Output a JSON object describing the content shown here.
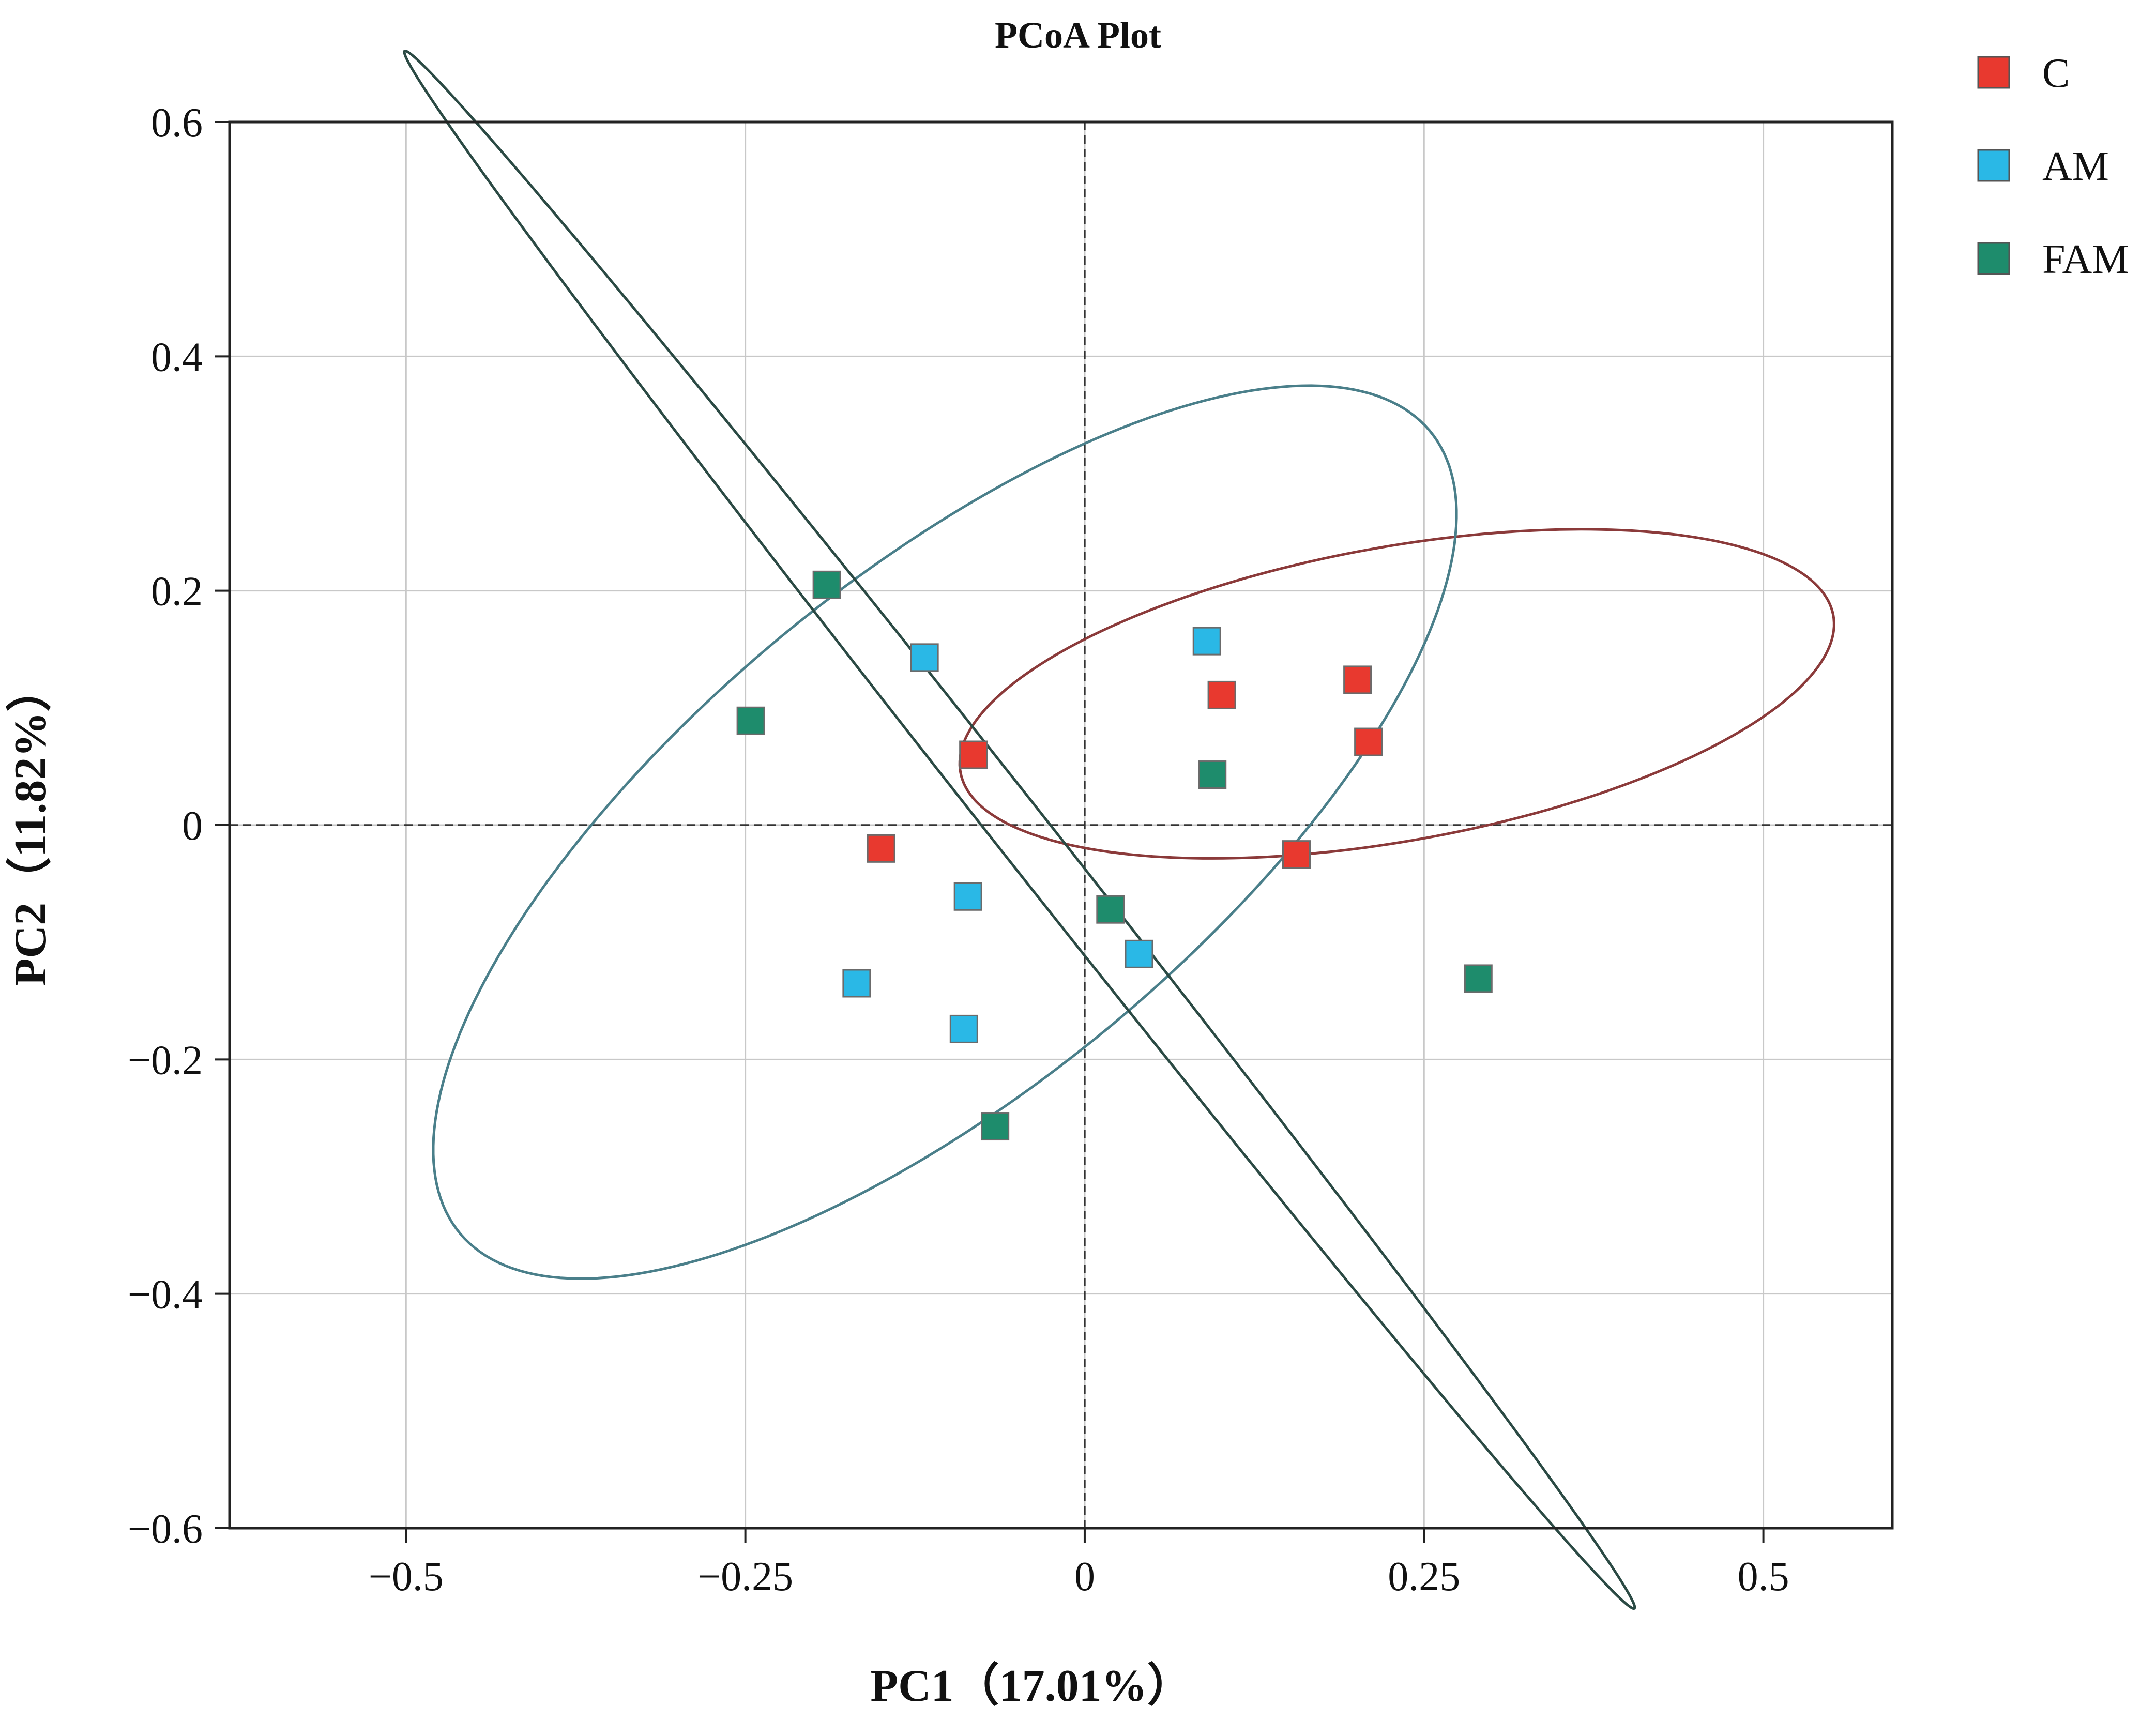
{
  "chart_data": {
    "type": "scatter",
    "title": "PCoA Plot",
    "xlabel": "PC1（17.01%）",
    "ylabel": "PC2（11.82%）",
    "xlim": [
      -0.63,
      0.595
    ],
    "ylim": [
      -0.6,
      0.6
    ],
    "grid": true,
    "zero_lines": true,
    "legend_position": "top-right",
    "xticks": [
      {
        "value": -0.5,
        "label": "−0.5"
      },
      {
        "value": -0.25,
        "label": "−0.25"
      },
      {
        "value": 0,
        "label": "0"
      },
      {
        "value": 0.25,
        "label": "0.25"
      },
      {
        "value": 0.5,
        "label": "0.5"
      }
    ],
    "yticks": [
      {
        "value": 0.6,
        "label": "0.6"
      },
      {
        "value": 0.4,
        "label": "0.4"
      },
      {
        "value": 0.2,
        "label": "0.2"
      },
      {
        "value": 0,
        "label": "0"
      },
      {
        "value": -0.2,
        "label": "−0.2"
      },
      {
        "value": -0.4,
        "label": "−0.4"
      },
      {
        "value": -0.6,
        "label": "−0.6"
      }
    ],
    "series": [
      {
        "name": "C",
        "color": "#e8392f",
        "ellipse_color": "#8b3a3a",
        "points": [
          {
            "x": -0.082,
            "y": 0.06
          },
          {
            "x": 0.101,
            "y": 0.111
          },
          {
            "x": 0.201,
            "y": 0.124
          },
          {
            "x": 0.209,
            "y": 0.071
          },
          {
            "x": -0.15,
            "y": -0.02
          },
          {
            "x": 0.156,
            "y": -0.025
          }
        ]
      },
      {
        "name": "AM",
        "color": "#2ab8e6",
        "ellipse_color": "#4a7f8a",
        "points": [
          {
            "x": -0.118,
            "y": 0.143
          },
          {
            "x": 0.09,
            "y": 0.157
          },
          {
            "x": -0.086,
            "y": -0.061
          },
          {
            "x": 0.04,
            "y": -0.11
          },
          {
            "x": -0.168,
            "y": -0.135
          },
          {
            "x": -0.089,
            "y": -0.174
          }
        ]
      },
      {
        "name": "FAM",
        "color": "#1e8c6c",
        "ellipse_color": "#2b4a44",
        "points": [
          {
            "x": -0.19,
            "y": 0.205
          },
          {
            "x": -0.246,
            "y": 0.089
          },
          {
            "x": 0.094,
            "y": 0.043
          },
          {
            "x": 0.019,
            "y": -0.072
          },
          {
            "x": 0.29,
            "y": -0.131
          },
          {
            "x": -0.066,
            "y": -0.257
          }
        ]
      }
    ],
    "ellipses": [
      {
        "series": "C",
        "cx": 0.23,
        "cy": 0.112,
        "x1": 0.542,
        "y1": 0.138,
        "x2": 0.31,
        "y2": 0.25
      },
      {
        "series": "AM",
        "cx": -0.103,
        "cy": -0.006,
        "x1": 0.081,
        "y1": 0.36,
        "x2": 0.226,
        "y2": 0.1
      },
      {
        "series": "FAM",
        "cx": -0.048,
        "cy": -0.004,
        "x1": -0.35,
        "y1": 0.466,
        "x2": 0.29,
        "y2": -0.474
      }
    ]
  }
}
